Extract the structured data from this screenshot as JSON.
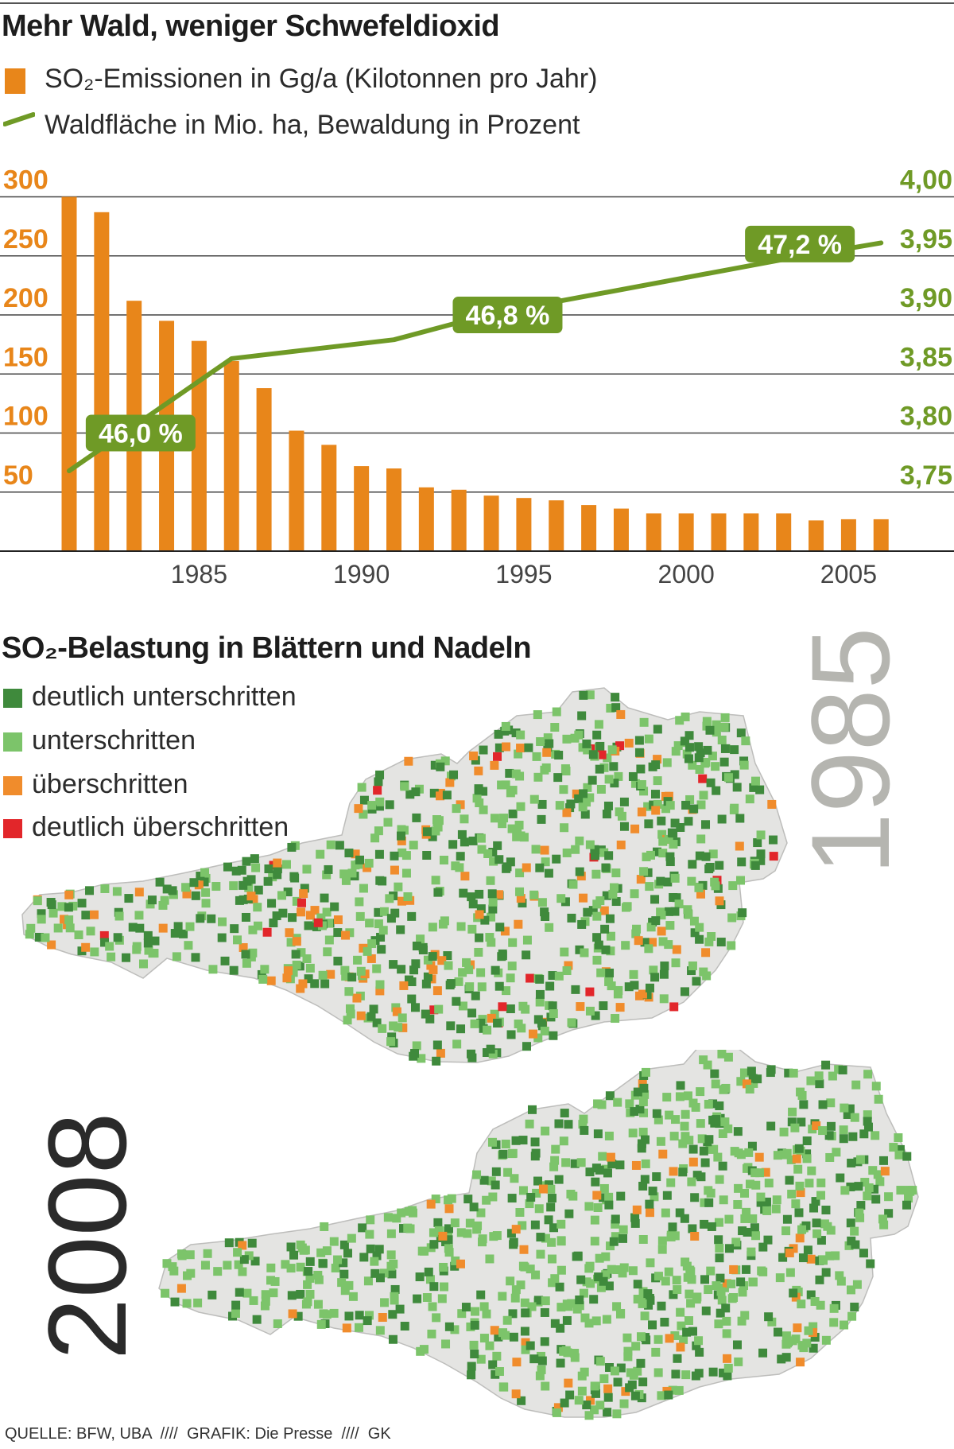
{
  "title": "Mehr Wald, weniger Schwefeldioxid",
  "legend": {
    "so2": "SO₂-Emissionen in Gg/a (Kilotonnen pro Jahr)",
    "forest": "Waldfläche in Mio. ha, Bewaldung in Prozent"
  },
  "colors": {
    "orange": "#e8861a",
    "green": "#6f9a26",
    "dark_green": "#3f8a3c",
    "light_green": "#7cc46a",
    "map_orange": "#f08c2c",
    "map_red": "#e2262a",
    "grey_year": "#b5b5b0"
  },
  "chart_data": {
    "type": "bar",
    "title": "Mehr Wald, weniger Schwefeldioxid",
    "x": [
      1981,
      1982,
      1983,
      1984,
      1985,
      1986,
      1987,
      1988,
      1989,
      1990,
      1991,
      1992,
      1993,
      1994,
      1995,
      1996,
      1997,
      1998,
      1999,
      2000,
      2001,
      2002,
      2003,
      2004,
      2005,
      2006
    ],
    "x_ticks": [
      "1985",
      "1990",
      "1995",
      "2000",
      "2005"
    ],
    "ylim_left": [
      0,
      300
    ],
    "y_ticks_left": [
      "50",
      "100",
      "150",
      "200",
      "250",
      "300"
    ],
    "ylim_right": [
      3.7,
      4.0
    ],
    "y_ticks_right": [
      "3,75",
      "3,80",
      "3,85",
      "3,90",
      "3,95",
      "4,00"
    ],
    "grid": true,
    "series": [
      {
        "name": "SO₂-Emissionen in Gg/a (Kilotonnen pro Jahr)",
        "type": "bar",
        "axis": "left",
        "values": [
          300,
          287,
          212,
          195,
          178,
          161,
          138,
          102,
          90,
          72,
          70,
          54,
          52,
          47,
          45,
          43,
          39,
          36,
          32,
          32,
          32,
          32,
          32,
          26,
          27,
          27
        ]
      },
      {
        "name": "Waldfläche in Mio. ha, Bewaldung in Prozent",
        "type": "line",
        "axis": "right",
        "x": [
          1981,
          1986,
          1991,
          1994,
          2003,
          2006
        ],
        "values": [
          3.768,
          3.863,
          3.879,
          3.901,
          3.947,
          3.961
        ]
      }
    ],
    "annotations": [
      {
        "text": "46,0 %",
        "x": 1983.2,
        "y": 3.8
      },
      {
        "text": "46,8 %",
        "x": 1994.5,
        "y": 3.9
      },
      {
        "text": "47,2 %",
        "x": 2003.5,
        "y": 3.96
      }
    ]
  },
  "map_section": {
    "title": "SO₂-Belastung in Blättern und Nadeln",
    "legend": [
      {
        "label": "deutlich unterschritten",
        "color": "#3f8a3c"
      },
      {
        "label": "unterschritten",
        "color": "#7cc46a"
      },
      {
        "label": "überschritten",
        "color": "#f08c2c"
      },
      {
        "label": "deutlich überschritten",
        "color": "#e2262a"
      }
    ],
    "year_top": "1985",
    "year_bottom": "2008"
  },
  "source": "QUELLE: BFW, UBA  ////  GRAFIK: Die Presse  ////  GK"
}
